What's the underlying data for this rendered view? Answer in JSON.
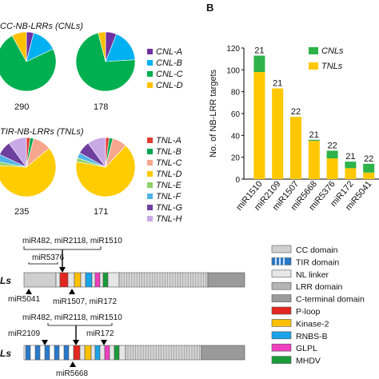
{
  "panel_a": {
    "cnl_title_visible": "CC-NB-LRRs (CNLs)",
    "tnl_title_visible": "TIR-NB-LRRs (TNLs)",
    "cnl_pie_counts": [
      "290",
      "178"
    ],
    "tnl_pie_counts": [
      "235",
      "171"
    ],
    "cnl_legend": [
      "CNL-A",
      "CNL-B",
      "CNL-C",
      "CNL-D"
    ],
    "tnl_legend": [
      "TNL-A",
      "TNL-B",
      "TNL-C",
      "TNL-D",
      "TNL-E",
      "TNL-F",
      "TNL-G",
      "TNL-H"
    ],
    "cnl_colors": [
      "#7030a0",
      "#00b0f0",
      "#00b050",
      "#ffc000"
    ],
    "tnl_colors": [
      "#e03c31",
      "#00a651",
      "#f6a68c",
      "#ffcc00",
      "#8fd16a",
      "#4fb3e8",
      "#6f3fa0",
      "#c9a8e6"
    ],
    "cnl_pies": [
      {
        "slices": [
          0.04,
          0.14,
          0.74,
          0.08
        ]
      },
      {
        "slices": [
          0.06,
          0.18,
          0.72,
          0.04
        ]
      }
    ],
    "tnl_pies": [
      {
        "slices": [
          0.02,
          0.02,
          0.1,
          0.62,
          0.02,
          0.04,
          0.08,
          0.1
        ]
      },
      {
        "slices": [
          0.02,
          0.02,
          0.08,
          0.66,
          0.02,
          0.03,
          0.07,
          0.1
        ]
      }
    ]
  },
  "panel_b": {
    "label": "B",
    "chart_data": {
      "type": "bar",
      "categories": [
        "miR1510",
        "miR2109",
        "miR1507",
        "miR5668",
        "miR5376",
        "miR172",
        "miR5041"
      ],
      "series": [
        {
          "name": "CNLs",
          "values": [
            15,
            0,
            0,
            1,
            7,
            6,
            8
          ]
        },
        {
          "name": "TNLs",
          "values": [
            98,
            83,
            57,
            35,
            19,
            10,
            6
          ]
        }
      ],
      "bar_labels": [
        "21",
        "21",
        "22",
        "21",
        "22",
        "21",
        "22"
      ],
      "ylabel": "No. of NB-LRR targets",
      "yticks": [
        "0",
        "20",
        "40",
        "60",
        "80",
        "100",
        "120"
      ],
      "ylim": [
        0,
        120
      ],
      "legend": [
        "CNLs",
        "TNLs"
      ],
      "colors": [
        "#2db34a",
        "#ffc800"
      ]
    }
  },
  "panel_c": {
    "cnl_row_label": "Ls",
    "tnl_row_label": "Ls",
    "cnl_top_annot": "miR482, miR2118, miR1510",
    "cnl_mid_annot": "miR5376",
    "cnl_bottom_left": "miR5041",
    "cnl_bottom_right": "miR1507, miR172",
    "tnl_top_annot": "miR482, miR2118, miR1510",
    "tnl_left_annot": "miR2109",
    "tnl_right_annot": "miR172",
    "tnl_bottom": "miR5668",
    "legend": [
      "CC domain",
      "TIR domain",
      "NL linker",
      "LRR domain",
      "C-terminal domain",
      "P-loop",
      "Kinase-2",
      "RNBS-B",
      "GLPL",
      "MHDV"
    ],
    "legend_colors": [
      "#cfcfcf",
      "#2a78c8",
      "#e6e6e6",
      "#bdbdbd",
      "#9a9a9a",
      "#e3261f",
      "#ffc000",
      "#1aa3e8",
      "#ee3fbf",
      "#1a9b3a"
    ]
  }
}
